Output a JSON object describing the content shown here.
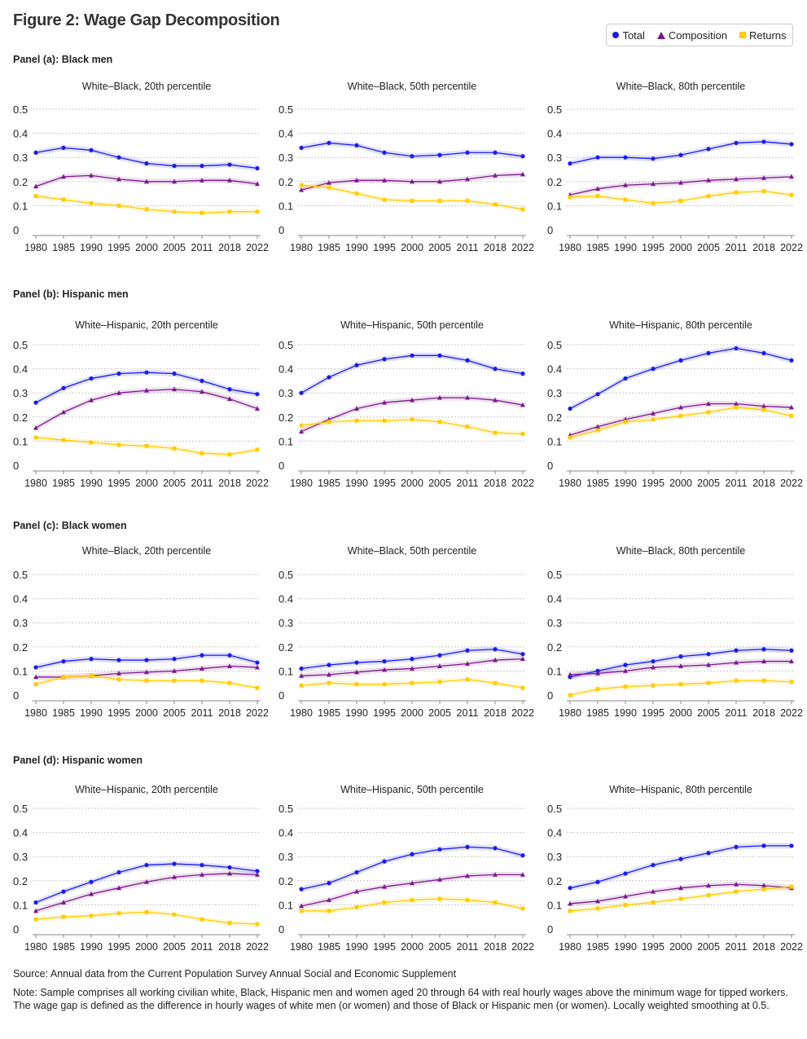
{
  "title": "Figure 2: Wage Gap Decomposition",
  "legend": {
    "total": "Total",
    "composition": "Composition",
    "returns": "Returns"
  },
  "colors": {
    "total": "#1a1aee",
    "composition": "#7a1a8a",
    "returns": "#ffcc00",
    "grid": "#c8c8c8"
  },
  "panels": [
    {
      "label": "Panel (a): Black men"
    },
    {
      "label": "Panel (b): Hispanic men"
    },
    {
      "label": "Panel (c): Black women"
    },
    {
      "label": "Panel (d): Hispanic women"
    }
  ],
  "source": "Source: Annual data from the Current Population Survey Annual Social and Economic Supplement",
  "note": "Note: Sample comprises all working civilian white, Black, Hispanic men and women aged 20 through 64 with real hourly wages above the minimum wage for tipped workers. The wage gap is defined as the difference in hourly wages of white men (or women) and those of Black or Hispanic men (or women). Locally weighted smoothing at 0.5.",
  "chart_data": [
    {
      "type": "line",
      "title": "White–Black, 20th percentile",
      "panel": 0,
      "x": [
        "1980",
        "1985",
        "1990",
        "1995",
        "2000",
        "2005",
        "2011",
        "2018",
        "2022"
      ],
      "yticks": [
        "0",
        "0.1",
        "0.2",
        "0.3",
        "0.4",
        "0.5"
      ],
      "ylim": [
        0,
        0.5
      ],
      "grid": true,
      "series": [
        {
          "name": "Total",
          "values": [
            0.32,
            0.34,
            0.33,
            0.3,
            0.275,
            0.265,
            0.265,
            0.27,
            0.255
          ]
        },
        {
          "name": "Composition",
          "values": [
            0.18,
            0.22,
            0.225,
            0.21,
            0.2,
            0.2,
            0.205,
            0.205,
            0.19
          ]
        },
        {
          "name": "Returns",
          "values": [
            0.14,
            0.125,
            0.11,
            0.1,
            0.085,
            0.075,
            0.07,
            0.075,
            0.075
          ]
        }
      ]
    },
    {
      "type": "line",
      "title": "White–Black, 50th percentile",
      "panel": 0,
      "x": [
        "1980",
        "1985",
        "1990",
        "1995",
        "2000",
        "2005",
        "2011",
        "2018",
        "2022"
      ],
      "yticks": [
        "0",
        "0.1",
        "0.2",
        "0.3",
        "0.4",
        "0.5"
      ],
      "ylim": [
        0,
        0.5
      ],
      "grid": true,
      "series": [
        {
          "name": "Total",
          "values": [
            0.34,
            0.36,
            0.35,
            0.32,
            0.305,
            0.31,
            0.32,
            0.32,
            0.305
          ]
        },
        {
          "name": "Composition",
          "values": [
            0.165,
            0.195,
            0.205,
            0.205,
            0.2,
            0.2,
            0.21,
            0.225,
            0.23
          ]
        },
        {
          "name": "Returns",
          "values": [
            0.185,
            0.175,
            0.15,
            0.125,
            0.12,
            0.12,
            0.12,
            0.105,
            0.085
          ]
        }
      ]
    },
    {
      "type": "line",
      "title": "White–Black, 80th percentile",
      "panel": 0,
      "x": [
        "1980",
        "1985",
        "1990",
        "1995",
        "2000",
        "2005",
        "2011",
        "2018",
        "2022"
      ],
      "yticks": [
        "0",
        "0.1",
        "0.2",
        "0.3",
        "0.4",
        "0.5"
      ],
      "ylim": [
        0,
        0.5
      ],
      "grid": true,
      "series": [
        {
          "name": "Total",
          "values": [
            0.275,
            0.3,
            0.3,
            0.295,
            0.31,
            0.335,
            0.36,
            0.365,
            0.355
          ]
        },
        {
          "name": "Composition",
          "values": [
            0.145,
            0.17,
            0.185,
            0.19,
            0.195,
            0.205,
            0.21,
            0.215,
            0.22
          ]
        },
        {
          "name": "Returns",
          "values": [
            0.135,
            0.14,
            0.125,
            0.11,
            0.12,
            0.14,
            0.155,
            0.16,
            0.145
          ]
        }
      ]
    },
    {
      "type": "line",
      "title": "White–Hispanic, 20th percentile",
      "panel": 1,
      "x": [
        "1980",
        "1985",
        "1990",
        "1995",
        "2000",
        "2005",
        "2011",
        "2018",
        "2022"
      ],
      "yticks": [
        "0",
        "0.1",
        "0.2",
        "0.3",
        "0.4",
        "0.5"
      ],
      "ylim": [
        0,
        0.5
      ],
      "grid": true,
      "series": [
        {
          "name": "Total",
          "values": [
            0.26,
            0.32,
            0.36,
            0.38,
            0.385,
            0.38,
            0.35,
            0.315,
            0.295
          ]
        },
        {
          "name": "Composition",
          "values": [
            0.155,
            0.22,
            0.27,
            0.3,
            0.31,
            0.315,
            0.305,
            0.275,
            0.235
          ]
        },
        {
          "name": "Returns",
          "values": [
            0.115,
            0.105,
            0.095,
            0.085,
            0.08,
            0.07,
            0.05,
            0.045,
            0.065
          ]
        }
      ]
    },
    {
      "type": "line",
      "title": "White–Hispanic, 50th percentile",
      "panel": 1,
      "x": [
        "1980",
        "1985",
        "1990",
        "1995",
        "2000",
        "2005",
        "2011",
        "2018",
        "2022"
      ],
      "yticks": [
        "0",
        "0.1",
        "0.2",
        "0.3",
        "0.4",
        "0.5"
      ],
      "ylim": [
        0,
        0.5
      ],
      "grid": true,
      "series": [
        {
          "name": "Total",
          "values": [
            0.3,
            0.365,
            0.415,
            0.44,
            0.455,
            0.455,
            0.435,
            0.4,
            0.38
          ]
        },
        {
          "name": "Composition",
          "values": [
            0.14,
            0.19,
            0.235,
            0.26,
            0.27,
            0.28,
            0.28,
            0.27,
            0.25
          ]
        },
        {
          "name": "Returns",
          "values": [
            0.165,
            0.18,
            0.185,
            0.185,
            0.19,
            0.18,
            0.16,
            0.135,
            0.13
          ]
        }
      ]
    },
    {
      "type": "line",
      "title": "White–Hispanic, 80th percentile",
      "panel": 1,
      "x": [
        "1980",
        "1985",
        "1990",
        "1995",
        "2000",
        "2005",
        "2011",
        "2018",
        "2022"
      ],
      "yticks": [
        "0",
        "0.1",
        "0.2",
        "0.3",
        "0.4",
        "0.5"
      ],
      "ylim": [
        0,
        0.5
      ],
      "grid": true,
      "series": [
        {
          "name": "Total",
          "values": [
            0.235,
            0.295,
            0.36,
            0.4,
            0.435,
            0.465,
            0.485,
            0.465,
            0.435
          ]
        },
        {
          "name": "Composition",
          "values": [
            0.125,
            0.16,
            0.19,
            0.215,
            0.24,
            0.255,
            0.255,
            0.245,
            0.24
          ]
        },
        {
          "name": "Returns",
          "values": [
            0.115,
            0.145,
            0.18,
            0.19,
            0.205,
            0.22,
            0.24,
            0.23,
            0.205
          ]
        }
      ]
    },
    {
      "type": "line",
      "title": "White–Black, 20th percentile",
      "panel": 2,
      "x": [
        "1980",
        "1985",
        "1990",
        "1995",
        "2000",
        "2005",
        "2011",
        "2018",
        "2022"
      ],
      "yticks": [
        "0",
        "0.1",
        "0.2",
        "0.3",
        "0.4",
        "0.5"
      ],
      "ylim": [
        0,
        0.5
      ],
      "grid": true,
      "series": [
        {
          "name": "Total",
          "values": [
            0.115,
            0.14,
            0.15,
            0.145,
            0.145,
            0.15,
            0.165,
            0.165,
            0.135
          ]
        },
        {
          "name": "Composition",
          "values": [
            0.075,
            0.075,
            0.08,
            0.09,
            0.095,
            0.1,
            0.11,
            0.12,
            0.115
          ]
        },
        {
          "name": "Returns",
          "values": [
            0.045,
            0.075,
            0.08,
            0.065,
            0.06,
            0.06,
            0.06,
            0.05,
            0.03
          ]
        }
      ]
    },
    {
      "type": "line",
      "title": "White–Black, 50th percentile",
      "panel": 2,
      "x": [
        "1980",
        "1985",
        "1990",
        "1995",
        "2000",
        "2005",
        "2011",
        "2018",
        "2022"
      ],
      "yticks": [
        "0",
        "0.1",
        "0.2",
        "0.3",
        "0.4",
        "0.5"
      ],
      "ylim": [
        0,
        0.5
      ],
      "grid": true,
      "series": [
        {
          "name": "Total",
          "values": [
            0.11,
            0.125,
            0.135,
            0.14,
            0.15,
            0.165,
            0.185,
            0.19,
            0.17
          ]
        },
        {
          "name": "Composition",
          "values": [
            0.08,
            0.085,
            0.095,
            0.105,
            0.11,
            0.12,
            0.13,
            0.145,
            0.15
          ]
        },
        {
          "name": "Returns",
          "values": [
            0.04,
            0.05,
            0.045,
            0.045,
            0.05,
            0.055,
            0.065,
            0.05,
            0.03
          ]
        }
      ]
    },
    {
      "type": "line",
      "title": "White–Black, 80th percentile",
      "panel": 2,
      "x": [
        "1980",
        "1985",
        "1990",
        "1995",
        "2000",
        "2005",
        "2011",
        "2018",
        "2022"
      ],
      "yticks": [
        "0",
        "0.1",
        "0.2",
        "0.3",
        "0.4",
        "0.5"
      ],
      "ylim": [
        0,
        0.5
      ],
      "grid": true,
      "series": [
        {
          "name": "Total",
          "values": [
            0.075,
            0.1,
            0.125,
            0.14,
            0.16,
            0.17,
            0.185,
            0.19,
            0.185
          ]
        },
        {
          "name": "Composition",
          "values": [
            0.085,
            0.09,
            0.1,
            0.115,
            0.12,
            0.125,
            0.135,
            0.14,
            0.14
          ]
        },
        {
          "name": "Returns",
          "values": [
            0.0,
            0.025,
            0.035,
            0.04,
            0.045,
            0.05,
            0.06,
            0.06,
            0.055
          ]
        }
      ]
    },
    {
      "type": "line",
      "title": "White–Hispanic, 20th percentile",
      "panel": 3,
      "x": [
        "1980",
        "1985",
        "1990",
        "1995",
        "2000",
        "2005",
        "2011",
        "2018",
        "2022"
      ],
      "yticks": [
        "0",
        "0.1",
        "0.2",
        "0.3",
        "0.4",
        "0.5"
      ],
      "ylim": [
        0,
        0.5
      ],
      "grid": true,
      "series": [
        {
          "name": "Total",
          "values": [
            0.11,
            0.155,
            0.195,
            0.235,
            0.265,
            0.27,
            0.265,
            0.255,
            0.24
          ]
        },
        {
          "name": "Composition",
          "values": [
            0.075,
            0.11,
            0.145,
            0.17,
            0.195,
            0.215,
            0.225,
            0.23,
            0.225
          ]
        },
        {
          "name": "Returns",
          "values": [
            0.04,
            0.05,
            0.055,
            0.065,
            0.07,
            0.06,
            0.04,
            0.025,
            0.02
          ]
        }
      ]
    },
    {
      "type": "line",
      "title": "White–Hispanic, 50th percentile",
      "panel": 3,
      "x": [
        "1980",
        "1985",
        "1990",
        "1995",
        "2000",
        "2005",
        "2011",
        "2018",
        "2022"
      ],
      "yticks": [
        "0",
        "0.1",
        "0.2",
        "0.3",
        "0.4",
        "0.5"
      ],
      "ylim": [
        0,
        0.5
      ],
      "grid": true,
      "series": [
        {
          "name": "Total",
          "values": [
            0.165,
            0.19,
            0.235,
            0.28,
            0.31,
            0.33,
            0.34,
            0.335,
            0.305
          ]
        },
        {
          "name": "Composition",
          "values": [
            0.095,
            0.12,
            0.155,
            0.175,
            0.19,
            0.205,
            0.22,
            0.225,
            0.225
          ]
        },
        {
          "name": "Returns",
          "values": [
            0.075,
            0.075,
            0.09,
            0.11,
            0.12,
            0.125,
            0.12,
            0.11,
            0.085
          ]
        }
      ]
    },
    {
      "type": "line",
      "title": "White–Hispanic, 80th percentile",
      "panel": 3,
      "x": [
        "1980",
        "1985",
        "1990",
        "1995",
        "2000",
        "2005",
        "2011",
        "2018",
        "2022"
      ],
      "yticks": [
        "0",
        "0.1",
        "0.2",
        "0.3",
        "0.4",
        "0.5"
      ],
      "ylim": [
        0,
        0.5
      ],
      "grid": true,
      "series": [
        {
          "name": "Total",
          "values": [
            0.17,
            0.195,
            0.23,
            0.265,
            0.29,
            0.315,
            0.34,
            0.345,
            0.345
          ]
        },
        {
          "name": "Composition",
          "values": [
            0.105,
            0.115,
            0.135,
            0.155,
            0.17,
            0.18,
            0.185,
            0.18,
            0.17
          ]
        },
        {
          "name": "Returns",
          "values": [
            0.075,
            0.085,
            0.1,
            0.11,
            0.125,
            0.14,
            0.155,
            0.165,
            0.175
          ]
        }
      ]
    }
  ]
}
